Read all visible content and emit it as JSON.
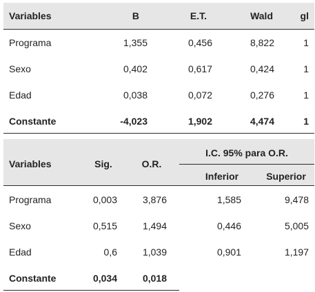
{
  "table1": {
    "headers": [
      "Variables",
      "B",
      "E.T.",
      "Wald",
      "gl"
    ],
    "rows": [
      [
        "Programa",
        "1,355",
        "0,456",
        "8,822",
        "1"
      ],
      [
        "Sexo",
        "0,402",
        "0,617",
        "0,424",
        "1"
      ],
      [
        "Edad",
        "0,038",
        "0,072",
        "0,276",
        "1"
      ],
      [
        "Constante",
        "-4,023",
        "1,902",
        "4,474",
        "1"
      ]
    ]
  },
  "table2": {
    "headers": [
      "Variables",
      "Sig.",
      "O.R."
    ],
    "group_header": "I.C. 95% para O.R.",
    "sub_headers": [
      "Inferior",
      "Superior"
    ],
    "rows": [
      [
        "Programa",
        "0,003",
        "3,876",
        "1,585",
        "9,478"
      ],
      [
        "Sexo",
        "0,515",
        "1,494",
        "0,446",
        "5,005"
      ],
      [
        "Edad",
        "0,6",
        "1,039",
        "0,901",
        "1,197"
      ],
      [
        "Constante",
        "0,034",
        "0,018",
        "",
        ""
      ]
    ]
  }
}
